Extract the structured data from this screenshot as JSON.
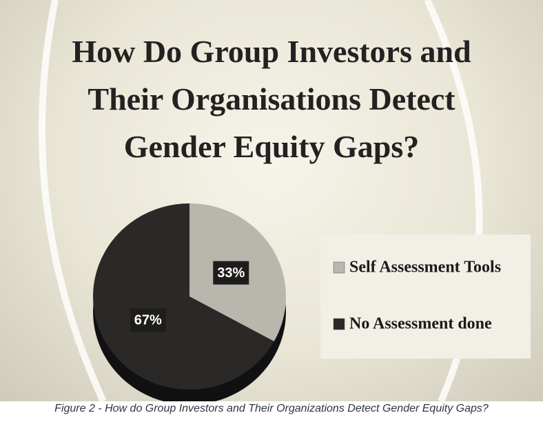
{
  "chart_data": {
    "type": "pie",
    "title": "How Do Group Investors and Their Organisations Detect Gender Equity Gaps?",
    "categories": [
      "Self Assessment Tools",
      "No Assessment done"
    ],
    "values": [
      33,
      67
    ],
    "value_labels": [
      "33%",
      "67%"
    ],
    "colors": [
      "#b9b6ae",
      "#2a2927"
    ],
    "legend": "right"
  },
  "caption": "Figure 2 - How do Group Investors and Their Organizations Detect Gender Equity Gaps?"
}
